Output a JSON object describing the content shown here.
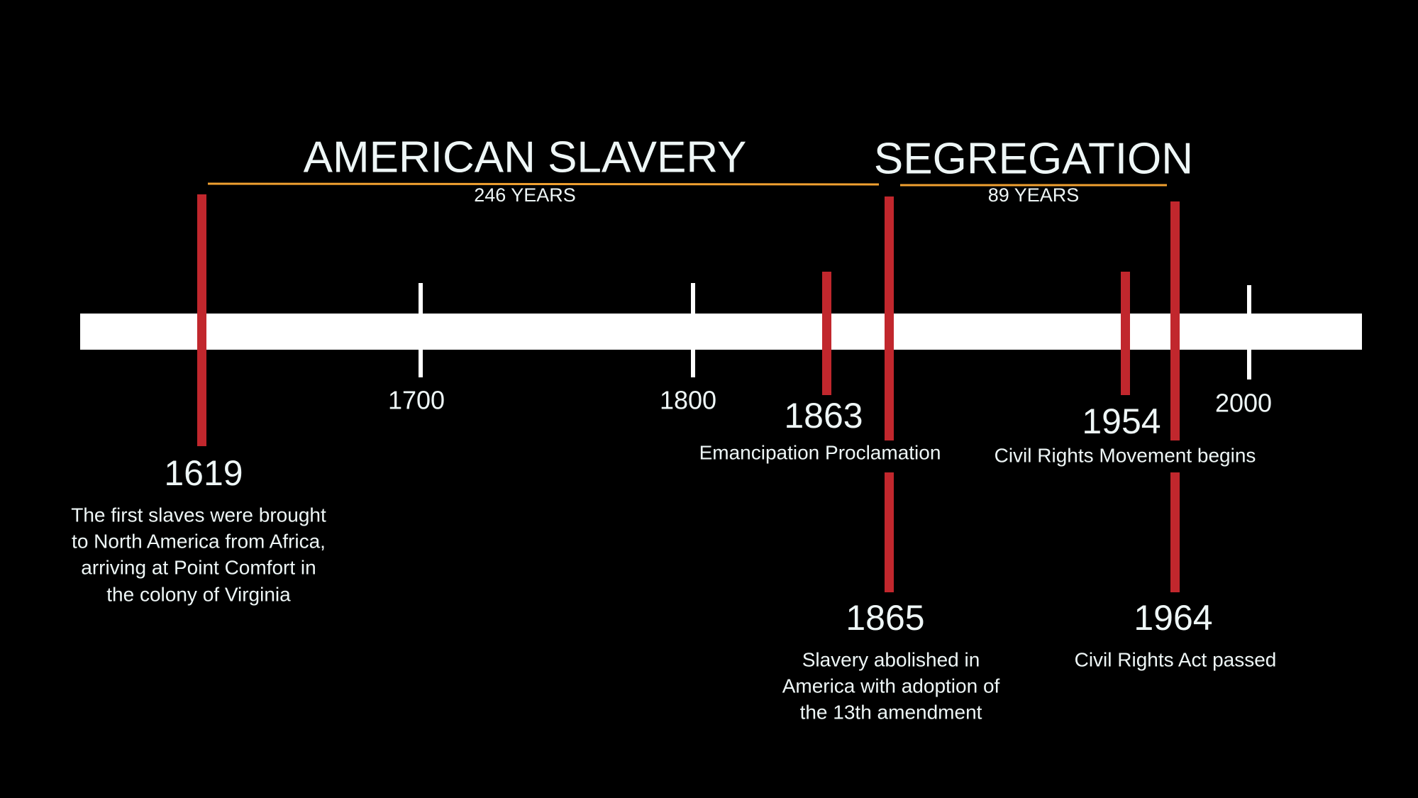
{
  "periods": [
    {
      "title": "AMERICAN SLAVERY",
      "duration": "246 YEARS"
    },
    {
      "title": "SEGREGATION",
      "duration": "89 YEARS"
    }
  ],
  "axis_ticks": [
    "1700",
    "1800",
    "2000"
  ],
  "events": [
    {
      "year": "1619",
      "description": [
        "The first slaves were brought",
        "to North America from Africa,",
        "arriving at Point Comfort in",
        "the colony of Virginia"
      ]
    },
    {
      "year": "1863",
      "description": [
        "Emancipation Proclamation"
      ]
    },
    {
      "year": "1865",
      "description": [
        "Slavery abolished in",
        "America with adoption of",
        "the 13th amendment"
      ]
    },
    {
      "year": "1954",
      "description": [
        "Civil Rights Movement begins"
      ]
    },
    {
      "year": "1964",
      "description": [
        "Civil Rights Act passed"
      ]
    }
  ]
}
